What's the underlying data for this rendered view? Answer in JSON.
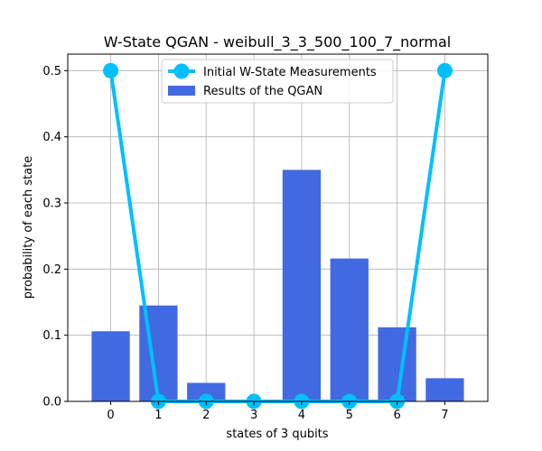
{
  "chart_data": {
    "type": "bar",
    "title": "W-State QGAN - weibull_3_3_500_100_7_normal",
    "xlabel": "states of 3 qubits",
    "ylabel": "probability of each state",
    "categories": [
      "0",
      "1",
      "2",
      "3",
      "4",
      "5",
      "6",
      "7"
    ],
    "xlim": [
      -0.9,
      7.9
    ],
    "ylim": [
      0,
      0.525
    ],
    "yticks": [
      0.0,
      0.1,
      0.2,
      0.3,
      0.4,
      0.5
    ],
    "ytick_labels": [
      "0.0",
      "0.1",
      "0.2",
      "0.3",
      "0.4",
      "0.5"
    ],
    "grid": true,
    "legend_placement": "upper center",
    "series": [
      {
        "name": "Initial W-State Measurements",
        "kind": "line",
        "color": "#00bfff",
        "values": [
          0.5,
          0.0,
          0.0,
          0.0,
          0.0,
          0.0,
          0.0,
          0.5
        ]
      },
      {
        "name": "Results of the QGAN",
        "kind": "bar",
        "color": "#4169e1",
        "values": [
          0.106,
          0.145,
          0.028,
          0.001,
          0.35,
          0.216,
          0.112,
          0.035
        ]
      }
    ]
  }
}
